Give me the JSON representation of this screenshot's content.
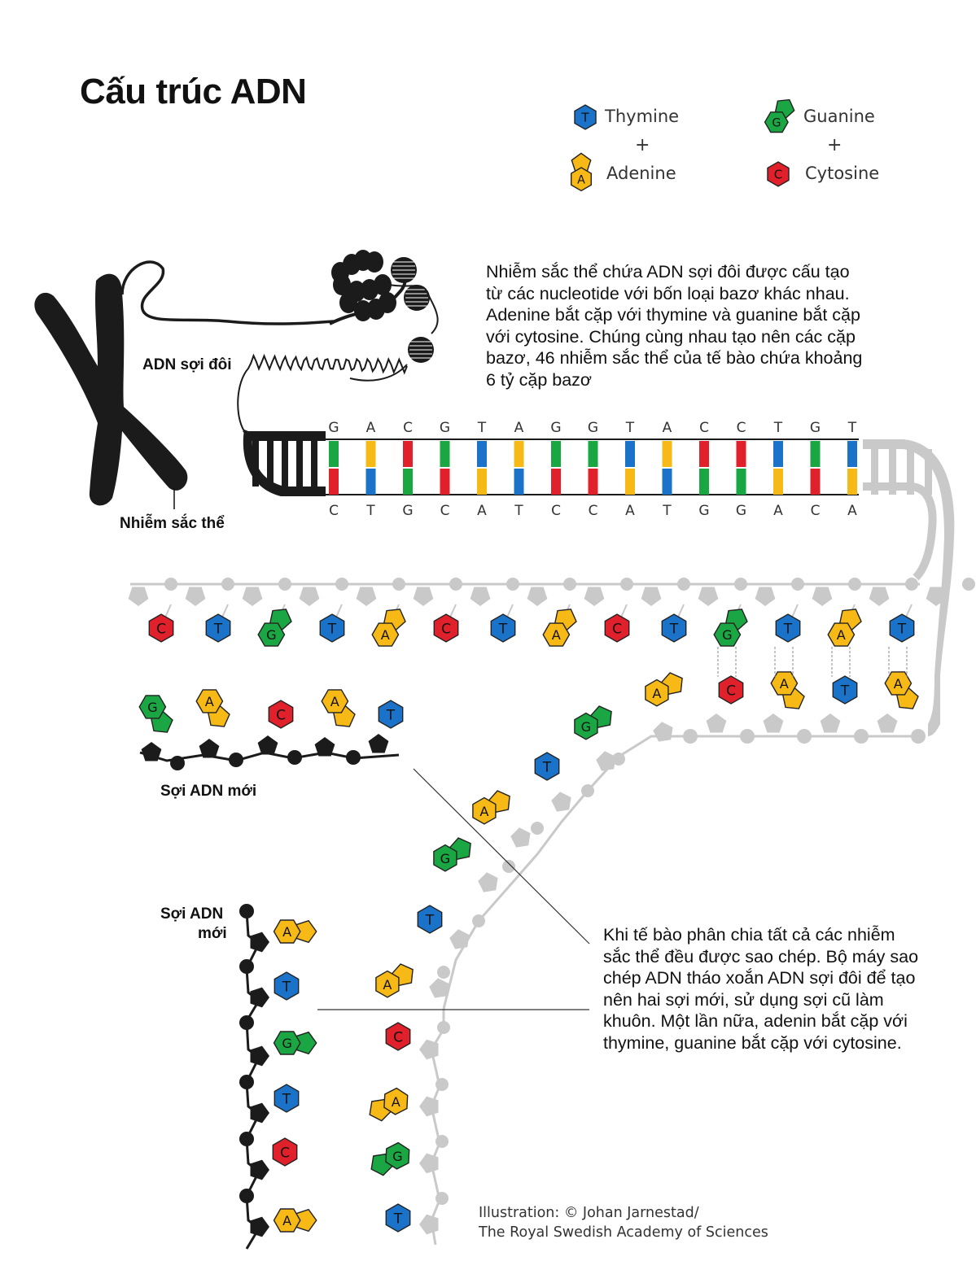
{
  "title": "Cấu trúc ADN",
  "legend": {
    "plus": "+",
    "items": [
      {
        "letter": "T",
        "name": "Thymine",
        "color": "#1a73c9"
      },
      {
        "letter": "A",
        "name": "Adenine",
        "color": "#f7b916"
      },
      {
        "letter": "G",
        "name": "Guanine",
        "color": "#1aa643"
      },
      {
        "letter": "C",
        "name": "Cytosine",
        "color": "#e0202a"
      }
    ]
  },
  "labels": {
    "double_strand": "ADN sợi đôi",
    "chromosome": "Nhiễm sắc thể",
    "new_strand_1": "Sợi ADN mới",
    "new_strand_2_line1": "Sợi ADN",
    "new_strand_2_line2": "mới"
  },
  "paragraph_top": {
    "lines": [
      "Nhiễm sắc thể chứa ADN sợi đôi được cấu tạo",
      "từ các nucleotide với bốn loại bazơ khác nhau.",
      "Adenine bắt cặp với thymine và guanine bắt cặp",
      "với cytosine. Chúng cùng nhau tạo nên các cặp",
      "bazơ, 46 nhiễm sắc thể của tế bào chứa khoảng",
      "6 tỷ cặp bazơ"
    ]
  },
  "paragraph_bottom": {
    "lines": [
      "Khi tế bào phân chia tất cả các nhiễm",
      "sắc thể đều được sao chép. Bộ máy sao",
      "chép ADN tháo xoắn ADN sợi đôi để tạo",
      "nên hai sợi mới, sử dụng sợi cũ làm",
      "khuôn. Một lần nữa, adenin bắt cặp với",
      "thymine, guanine bắt cặp với cytosine."
    ]
  },
  "credit": {
    "line1": "Illustration: © Johan Jarnestad/",
    "line2": "The Royal Swedish Academy of Sciences"
  },
  "sequence": {
    "top": [
      "G",
      "A",
      "C",
      "G",
      "T",
      "A",
      "G",
      "G",
      "T",
      "A",
      "C",
      "C",
      "T",
      "G",
      "T"
    ],
    "bottom": [
      "C",
      "T",
      "G",
      "C",
      "A",
      "T",
      "C",
      "C",
      "A",
      "T",
      "G",
      "G",
      "A",
      "C",
      "A"
    ]
  },
  "strands": {
    "gray_top_row": [
      "C",
      "T",
      "G",
      "T",
      "A",
      "C",
      "T",
      "A",
      "C",
      "T",
      "G",
      "T",
      "A",
      "T"
    ],
    "gray_top_partners": [
      "C",
      "A",
      "T",
      "A"
    ],
    "new_strand_1": [
      "G",
      "A",
      "C",
      "A",
      "T"
    ],
    "fork_arm": [
      "A",
      "G",
      "T",
      "A",
      "G",
      "T",
      "A"
    ],
    "gray_lower_arm": [
      "C",
      "A",
      "G",
      "T"
    ],
    "new_strand_2": [
      "A",
      "T",
      "G",
      "T",
      "C",
      "A"
    ]
  }
}
